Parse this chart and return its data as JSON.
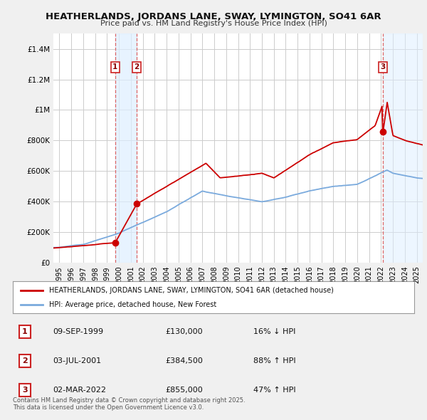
{
  "title": "HEATHERLANDS, JORDANS LANE, SWAY, LYMINGTON, SO41 6AR",
  "subtitle": "Price paid vs. HM Land Registry's House Price Index (HPI)",
  "ylabel_ticks": [
    "£0",
    "£200K",
    "£400K",
    "£600K",
    "£800K",
    "£1M",
    "£1.2M",
    "£1.4M"
  ],
  "ylim": [
    0,
    1500000
  ],
  "ytick_vals": [
    0,
    200000,
    400000,
    600000,
    800000,
    1000000,
    1200000,
    1400000
  ],
  "xlim_start": 1994.5,
  "xlim_end": 2025.5,
  "background_color": "#f0f0f0",
  "plot_bg_color": "#ffffff",
  "grid_color": "#cccccc",
  "sale_color": "#cc0000",
  "hpi_color": "#7aaadd",
  "shade_color": "#ddeeff",
  "sale_label": "HEATHERLANDS, JORDANS LANE, SWAY, LYMINGTON, SO41 6AR (detached house)",
  "hpi_label": "HPI: Average price, detached house, New Forest",
  "transactions": [
    {
      "num": 1,
      "date": "09-SEP-1999",
      "price": 130000,
      "price_str": "£130,000",
      "rel": "16% ↓ HPI",
      "x": 1999.69
    },
    {
      "num": 2,
      "date": "03-JUL-2001",
      "price": 384500,
      "price_str": "£384,500",
      "rel": "88% ↑ HPI",
      "x": 2001.5
    },
    {
      "num": 3,
      "date": "02-MAR-2022",
      "price": 855000,
      "price_str": "£855,000",
      "rel": "47% ↑ HPI",
      "x": 2022.17
    }
  ],
  "footer": "Contains HM Land Registry data © Crown copyright and database right 2025.\nThis data is licensed under the Open Government Licence v3.0.",
  "xtick_years": [
    1995,
    1996,
    1997,
    1998,
    1999,
    2000,
    2001,
    2002,
    2003,
    2004,
    2005,
    2006,
    2007,
    2008,
    2009,
    2010,
    2011,
    2012,
    2013,
    2014,
    2015,
    2016,
    2017,
    2018,
    2019,
    2020,
    2021,
    2022,
    2023,
    2024,
    2025
  ]
}
